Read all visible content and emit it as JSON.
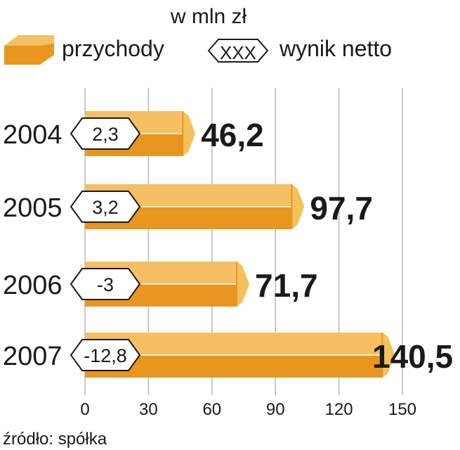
{
  "chart_data": {
    "type": "bar",
    "orientation": "horizontal",
    "title": "w mln zł",
    "categories": [
      "2004",
      "2005",
      "2006",
      "2007"
    ],
    "series": [
      {
        "name": "przychody",
        "values": [
          46.2,
          97.7,
          71.7,
          140.5
        ]
      },
      {
        "name": "wynik netto",
        "values": [
          2.3,
          3.2,
          -3,
          -12.8
        ]
      }
    ],
    "value_labels": [
      "46,2",
      "97,7",
      "71,7",
      "140,5"
    ],
    "net_labels": [
      "2,3",
      "3,2",
      "-3",
      "-12,8"
    ],
    "legend": {
      "revenue": "przychody",
      "net_symbol": "XXX",
      "net": "wynik netto",
      "position": "top"
    },
    "xlim": [
      0,
      150
    ],
    "xticks": [
      0,
      30,
      60,
      90,
      120,
      150
    ],
    "grid": true,
    "source": "źródło: spółka",
    "colors": {
      "bar_dark": "#e8961f",
      "bar_light": "#f6bf63",
      "bar_cap": "#f4c15a",
      "grid": "#bdbdbd",
      "text": "#1a1a1a"
    }
  }
}
